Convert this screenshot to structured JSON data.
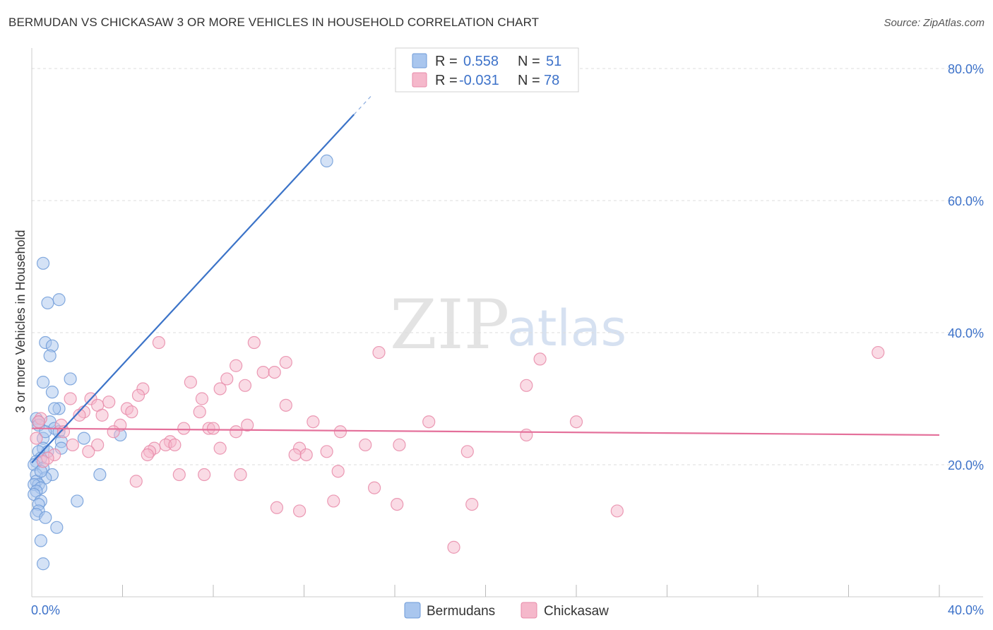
{
  "header": {
    "title": "BERMUDAN VS CHICKASAW 3 OR MORE VEHICLES IN HOUSEHOLD CORRELATION CHART",
    "source": "Source: ZipAtlas.com"
  },
  "watermark": {
    "zip": "ZIP",
    "atlas": "atlas"
  },
  "legend": {
    "rows": [
      {
        "r_label": "R =",
        "r_value": "0.558",
        "n_label": "N =",
        "n_value": "51",
        "color": "#a9c6ee"
      },
      {
        "r_label": "R =",
        "r_value": "-0.031",
        "n_label": "N =",
        "n_value": "78",
        "color": "#f5b8cb"
      }
    ]
  },
  "chart_data": {
    "type": "scatter",
    "title": "BERMUDAN VS CHICKASAW 3 OR MORE VEHICLES IN HOUSEHOLD CORRELATION CHART",
    "xlabel": "",
    "ylabel": "3 or more Vehicles in Household",
    "xlim": [
      0,
      40
    ],
    "ylim": [
      0,
      80
    ],
    "x_tick_labels": [
      "0.0%",
      "40.0%"
    ],
    "y_ticks": [
      20,
      40,
      60,
      80
    ],
    "y_tick_labels": [
      "20.0%",
      "40.0%",
      "60.0%",
      "80.0%"
    ],
    "grid": true,
    "series": [
      {
        "name": "Bermudans",
        "color": "#a9c6ee",
        "stroke": "#6e9bd8",
        "trend": {
          "x1": 0.0,
          "y1": 20.3,
          "x2": 15.0,
          "y2": 76.0,
          "solid_to_x": 15.0,
          "line_color": "#3b73c8"
        },
        "points": [
          [
            0.5,
            50.5
          ],
          [
            1.2,
            45.0
          ],
          [
            0.7,
            44.5
          ],
          [
            0.6,
            38.5
          ],
          [
            0.9,
            38.0
          ],
          [
            0.8,
            36.5
          ],
          [
            1.7,
            33.0
          ],
          [
            0.5,
            32.5
          ],
          [
            0.9,
            31.0
          ],
          [
            1.2,
            28.5
          ],
          [
            1.0,
            28.5
          ],
          [
            0.2,
            27.0
          ],
          [
            0.3,
            26.5
          ],
          [
            0.8,
            26.5
          ],
          [
            1.0,
            25.5
          ],
          [
            1.2,
            25.0
          ],
          [
            0.5,
            24.0
          ],
          [
            1.3,
            23.5
          ],
          [
            2.3,
            24.0
          ],
          [
            3.9,
            24.5
          ],
          [
            0.5,
            22.5
          ],
          [
            0.7,
            22.0
          ],
          [
            1.3,
            22.5
          ],
          [
            0.3,
            22.0
          ],
          [
            0.4,
            21.0
          ],
          [
            0.2,
            20.5
          ],
          [
            0.1,
            20.0
          ],
          [
            0.5,
            19.5
          ],
          [
            0.2,
            18.5
          ],
          [
            0.9,
            18.5
          ],
          [
            3.0,
            18.5
          ],
          [
            0.6,
            18.0
          ],
          [
            0.2,
            17.5
          ],
          [
            0.3,
            17.0
          ],
          [
            0.1,
            17.0
          ],
          [
            0.4,
            16.5
          ],
          [
            0.2,
            16.0
          ],
          [
            0.1,
            15.5
          ],
          [
            2.0,
            14.5
          ],
          [
            0.4,
            14.5
          ],
          [
            0.3,
            14.0
          ],
          [
            0.3,
            13.0
          ],
          [
            0.2,
            12.5
          ],
          [
            0.6,
            12.0
          ],
          [
            1.1,
            10.5
          ],
          [
            0.4,
            8.5
          ],
          [
            0.5,
            5.0
          ],
          [
            13.0,
            66.0
          ],
          [
            0.3,
            26.0
          ],
          [
            0.6,
            25.0
          ],
          [
            0.4,
            19.0
          ]
        ]
      },
      {
        "name": "Chickasaw",
        "color": "#f5b8cb",
        "stroke": "#e88aa8",
        "trend": {
          "x1": 0.0,
          "y1": 25.5,
          "x2": 40.0,
          "y2": 24.5,
          "line_color": "#e46f9a"
        },
        "points": [
          [
            5.6,
            38.5
          ],
          [
            9.8,
            38.5
          ],
          [
            11.2,
            35.5
          ],
          [
            9.0,
            35.0
          ],
          [
            10.2,
            34.0
          ],
          [
            10.7,
            34.0
          ],
          [
            15.3,
            37.0
          ],
          [
            22.4,
            36.0
          ],
          [
            37.3,
            37.0
          ],
          [
            7.0,
            32.5
          ],
          [
            8.6,
            33.0
          ],
          [
            9.4,
            32.0
          ],
          [
            8.3,
            31.5
          ],
          [
            4.9,
            31.5
          ],
          [
            7.5,
            30.0
          ],
          [
            1.7,
            30.0
          ],
          [
            2.6,
            30.0
          ],
          [
            4.7,
            30.5
          ],
          [
            3.4,
            29.5
          ],
          [
            2.9,
            29.0
          ],
          [
            11.2,
            29.0
          ],
          [
            4.2,
            28.5
          ],
          [
            2.3,
            28.0
          ],
          [
            7.4,
            28.0
          ],
          [
            4.4,
            28.0
          ],
          [
            2.1,
            27.5
          ],
          [
            3.1,
            27.5
          ],
          [
            0.4,
            27.0
          ],
          [
            0.3,
            26.5
          ],
          [
            12.4,
            26.5
          ],
          [
            17.5,
            26.5
          ],
          [
            24.0,
            26.5
          ],
          [
            3.9,
            26.0
          ],
          [
            1.3,
            26.0
          ],
          [
            9.5,
            26.0
          ],
          [
            6.7,
            25.5
          ],
          [
            7.8,
            25.5
          ],
          [
            8.0,
            25.5
          ],
          [
            3.6,
            25.0
          ],
          [
            1.4,
            25.0
          ],
          [
            9.0,
            25.0
          ],
          [
            21.8,
            24.5
          ],
          [
            0.2,
            24.0
          ],
          [
            6.1,
            23.5
          ],
          [
            5.9,
            23.0
          ],
          [
            5.4,
            22.5
          ],
          [
            6.3,
            23.0
          ],
          [
            1.8,
            23.0
          ],
          [
            2.9,
            23.0
          ],
          [
            14.7,
            23.0
          ],
          [
            16.2,
            23.0
          ],
          [
            8.3,
            22.5
          ],
          [
            11.8,
            22.5
          ],
          [
            5.2,
            22.0
          ],
          [
            2.5,
            22.0
          ],
          [
            13.0,
            22.0
          ],
          [
            19.2,
            22.0
          ],
          [
            11.6,
            21.5
          ],
          [
            12.1,
            21.5
          ],
          [
            5.1,
            21.5
          ],
          [
            1.0,
            21.5
          ],
          [
            0.7,
            21.0
          ],
          [
            0.5,
            20.5
          ],
          [
            13.5,
            19.0
          ],
          [
            6.5,
            18.5
          ],
          [
            7.6,
            18.5
          ],
          [
            9.2,
            18.5
          ],
          [
            4.6,
            17.5
          ],
          [
            15.1,
            16.5
          ],
          [
            13.3,
            14.5
          ],
          [
            10.8,
            13.5
          ],
          [
            11.8,
            13.0
          ],
          [
            16.1,
            14.0
          ],
          [
            25.8,
            13.0
          ],
          [
            18.6,
            7.5
          ],
          [
            19.4,
            14.0
          ],
          [
            21.8,
            32.0
          ],
          [
            13.6,
            25.0
          ]
        ]
      }
    ]
  },
  "bottom_legend": [
    {
      "label": "Bermudans",
      "color": "#a9c6ee"
    },
    {
      "label": "Chickasaw",
      "color": "#f5b8cb"
    }
  ]
}
